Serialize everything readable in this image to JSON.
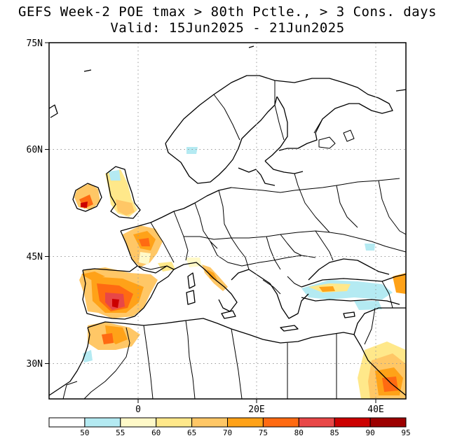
{
  "title_line1": "GEFS Week-2 POE tmax > 80th Pctle., > 3 Cons. days",
  "title_line2": "Valid: 15Jun2025 - 21Jun2025",
  "lat_labels": [
    "75N",
    "60N",
    "45N",
    "30N"
  ],
  "lon_labels": [
    "0",
    "20E",
    "40E"
  ],
  "colorbar": {
    "labels": [
      "50",
      "55",
      "60",
      "65",
      "70",
      "75",
      "80",
      "85",
      "90",
      "95"
    ],
    "colors": [
      "#ffffff",
      "#b4eaf2",
      "#fff9c8",
      "#ffe88a",
      "#ffc766",
      "#ffa218",
      "#ff6a12",
      "#e84747",
      "#cc0000",
      "#9c0000"
    ]
  }
}
